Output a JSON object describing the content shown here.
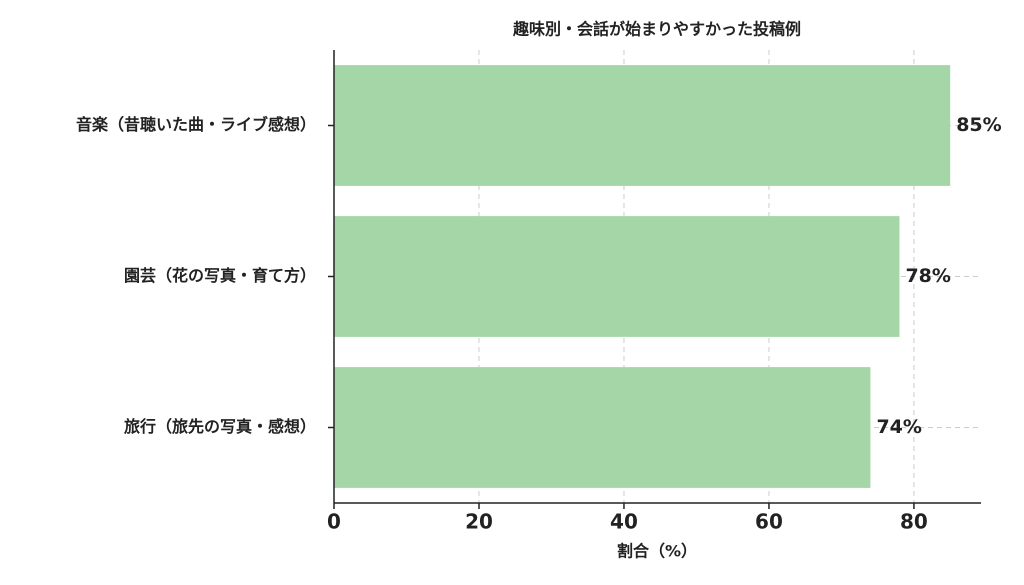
{
  "chart_data": {
    "type": "barh",
    "title": "趣味別・会話が始まりやすかった投稿例",
    "categories": [
      "音楽（昔聴いた曲・ライブ感想）",
      "園芸（花の写真・育て方）",
      "旅行（旅先の写真・感想）"
    ],
    "values": [
      85,
      78,
      74
    ],
    "value_labels": [
      "85%",
      "78%",
      "74%"
    ],
    "color": "#a5d6a7",
    "xlabel": "割合（%）",
    "xlim": [
      0,
      89.25
    ],
    "xticks": [
      0,
      20,
      40,
      60,
      80
    ],
    "grid": true
  }
}
